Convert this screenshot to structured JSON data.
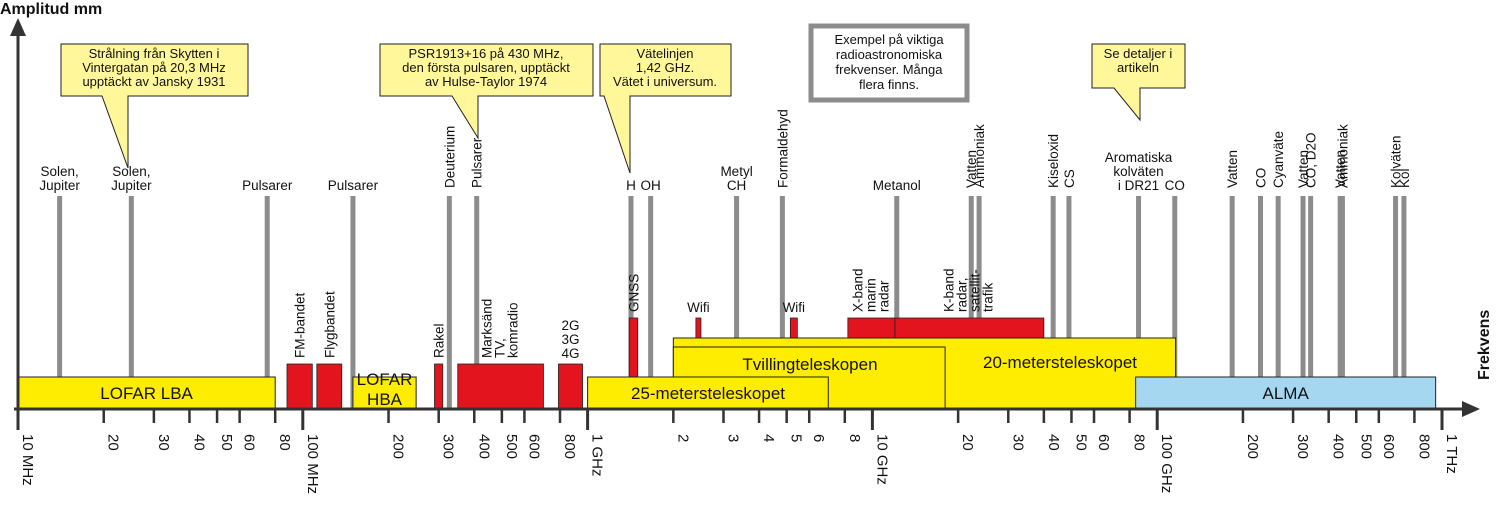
{
  "axes": {
    "y_label": "Amplitud mm",
    "x_label": "Frekvens",
    "ticks": [
      {
        "v": 10,
        "label": "10 MHz",
        "major": true
      },
      {
        "v": 20,
        "label": "20"
      },
      {
        "v": 30,
        "label": "30"
      },
      {
        "v": 40,
        "label": "40"
      },
      {
        "v": 50,
        "label": "50"
      },
      {
        "v": 60,
        "label": "60"
      },
      {
        "v": 80,
        "label": "80"
      },
      {
        "v": 100,
        "label": "100 MHz",
        "major": true
      },
      {
        "v": 200,
        "label": "200"
      },
      {
        "v": 300,
        "label": "300"
      },
      {
        "v": 400,
        "label": "400"
      },
      {
        "v": 500,
        "label": "500"
      },
      {
        "v": 600,
        "label": "600"
      },
      {
        "v": 800,
        "label": "800"
      },
      {
        "v": 1000,
        "label": "1 GHz",
        "major": true
      },
      {
        "v": 2000,
        "label": "2"
      },
      {
        "v": 3000,
        "label": "3"
      },
      {
        "v": 4000,
        "label": "4"
      },
      {
        "v": 5000,
        "label": "5"
      },
      {
        "v": 6000,
        "label": "6"
      },
      {
        "v": 8000,
        "label": "8"
      },
      {
        "v": 10000,
        "label": "10 GHz",
        "major": true
      },
      {
        "v": 20000,
        "label": "20"
      },
      {
        "v": 30000,
        "label": "30"
      },
      {
        "v": 40000,
        "label": "40"
      },
      {
        "v": 50000,
        "label": "50"
      },
      {
        "v": 60000,
        "label": "60"
      },
      {
        "v": 80000,
        "label": "80"
      },
      {
        "v": 100000,
        "label": "100 GHz",
        "major": true
      },
      {
        "v": 200000,
        "label": "200"
      },
      {
        "v": 300000,
        "label": "300"
      },
      {
        "v": 400000,
        "label": "400"
      },
      {
        "v": 500000,
        "label": "500"
      },
      {
        "v": 600000,
        "label": "600"
      },
      {
        "v": 800000,
        "label": "800"
      },
      {
        "v": 1000000,
        "label": "1 THz",
        "major": true
      }
    ]
  },
  "spectral_lines": [
    {
      "mhz": 14,
      "label": [
        "Solen,",
        "Jupiter"
      ]
    },
    {
      "mhz": 25,
      "label": [
        "Solen,",
        "Jupiter"
      ]
    },
    {
      "mhz": 75,
      "label": [
        "Pulsarer"
      ]
    },
    {
      "mhz": 150,
      "label": [
        "Pulsarer"
      ]
    },
    {
      "mhz": 327,
      "label": [
        "Deuterium"
      ],
      "vertical": true
    },
    {
      "mhz": 408,
      "label": [
        "Pulsarer"
      ],
      "vertical": true
    },
    {
      "mhz": 1420,
      "label": [
        "H"
      ]
    },
    {
      "mhz": 1665,
      "label": [
        "OH"
      ]
    },
    {
      "mhz": 3335,
      "label": [
        "Metyl",
        "CH"
      ]
    },
    {
      "mhz": 4830,
      "label": [
        "Formaldehyd"
      ],
      "vertical": true
    },
    {
      "mhz": 12178,
      "label": [
        "Metanol"
      ]
    },
    {
      "mhz": 22235,
      "label": [
        "Vatten"
      ],
      "vertical": true
    },
    {
      "mhz": 23694,
      "label": [
        "Ammoniak"
      ],
      "vertical": true
    },
    {
      "mhz": 43122,
      "label": [
        "Kiseloxid"
      ],
      "vertical": true
    },
    {
      "mhz": 48990,
      "label": [
        "CS"
      ],
      "vertical": true
    },
    {
      "mhz": 86000,
      "label": [
        "Aromatiska",
        "kolväten",
        "i DR21"
      ]
    },
    {
      "mhz": 115271,
      "label": [
        "CO"
      ]
    },
    {
      "mhz": 183310,
      "label": [
        "Vatten"
      ],
      "vertical": true
    },
    {
      "mhz": 230538,
      "label": [
        "CO"
      ],
      "vertical": true
    },
    {
      "mhz": 265886,
      "label": [
        "Cyanväte"
      ],
      "vertical": true
    },
    {
      "mhz": 325153,
      "label": [
        "Vatten"
      ],
      "vertical": true
    },
    {
      "mhz": 345796,
      "label": [
        "CO, D2O"
      ],
      "vertical": true
    },
    {
      "mhz": 439000,
      "label": [
        "Vatten"
      ],
      "vertical": true
    },
    {
      "mhz": 447000,
      "label": [
        "Ammoniak"
      ],
      "vertical": true
    },
    {
      "mhz": 687000,
      "label": [
        "Kolväten"
      ],
      "vertical": true
    },
    {
      "mhz": 735000,
      "label": [
        "Kol"
      ],
      "vertical": true
    }
  ],
  "bands": [
    {
      "name": "FM-bandet",
      "lo": 88,
      "hi": 108,
      "vertical": true
    },
    {
      "name": "Flygbandet",
      "lo": 112,
      "hi": 137,
      "vertical": true
    },
    {
      "name": "Rakel",
      "lo": 290,
      "hi": 310,
      "vertical": true
    },
    {
      "name": "Marksänd TV, komradio",
      "lines": [
        "Marksänd",
        "TV,",
        "komradio"
      ],
      "lo": 350,
      "hi": 700,
      "vertical": true
    },
    {
      "name": "2G 3G 4G",
      "lines": [
        "2G",
        "3G",
        "4G"
      ],
      "lo": 790,
      "hi": 960
    },
    {
      "name": "GNSS",
      "lo": 1400,
      "hi": 1500,
      "vertical": true,
      "tall": true
    },
    {
      "name": "Wifi",
      "lo": 2400,
      "hi": 2500,
      "small": true
    },
    {
      "name": "Wifi",
      "lo": 5150,
      "hi": 5450,
      "small": true
    },
    {
      "name": "X-band marin radar",
      "lines": [
        "X-band",
        "marin",
        "radar"
      ],
      "lo": 8200,
      "hi": 12000,
      "vertical": true,
      "small": true
    },
    {
      "name": "K-band radar, satellit-trafik",
      "lines": [
        "K-band",
        "radar,",
        "satellit-",
        "trafik"
      ],
      "lo": 12000,
      "hi": 40000,
      "vertical": true,
      "small": true
    }
  ],
  "telescopes": [
    {
      "name": "LOFAR LBA",
      "lines": [
        "LOFAR LBA"
      ],
      "lo": 10,
      "hi": 80,
      "color": "yellow",
      "row": "low"
    },
    {
      "name": "LOFAR HBA",
      "lines": [
        "LOFAR",
        "HBA"
      ],
      "lo": 150,
      "hi": 250,
      "color": "yellow",
      "row": "low"
    },
    {
      "name": "25-metersteleskopet",
      "lines": [
        "25-metersteleskopet"
      ],
      "lo": 1000,
      "hi": 7000,
      "color": "yellow",
      "row": "low"
    },
    {
      "name": "20-metersteleskopet",
      "lines": [
        "20-metersteleskopet"
      ],
      "lo": 2000,
      "hi": 116000,
      "color": "yellow",
      "row": "high"
    },
    {
      "name": "Tvillingteleskopen",
      "lines": [
        "Tvillingteleskopen"
      ],
      "lo": 2000,
      "hi": 18000,
      "color": "yellow",
      "row": "mid"
    },
    {
      "name": "ALMA",
      "lines": [
        "ALMA"
      ],
      "lo": 84000,
      "hi": 950000,
      "color": "blue",
      "row": "low"
    }
  ],
  "callouts": [
    {
      "lines": [
        "Strålning från Skytten i",
        "Vintergatan på 20,3 MHz",
        "upptäckt av Jansky 1931"
      ]
    },
    {
      "lines": [
        "PSR1913+16 på 430 MHz,",
        "den första pulsaren, upptäckt",
        "av Hulse-Taylor 1974"
      ]
    },
    {
      "lines": [
        "Vätelinjen",
        "1,42 GHz.",
        "Vätet i universum."
      ]
    },
    {
      "lines": [
        "Se detaljer i",
        "artikeln"
      ]
    }
  ],
  "info_box": {
    "lines": [
      "Exempel på viktiga",
      "radioastronomiska",
      "frekvenser. Många",
      "flera finns."
    ]
  },
  "colors": {
    "yellow": "#FFED00",
    "blue": "#A6D7F0",
    "red": "#E3141E",
    "line": "#8C8C8C",
    "callout": "#FFF799"
  }
}
